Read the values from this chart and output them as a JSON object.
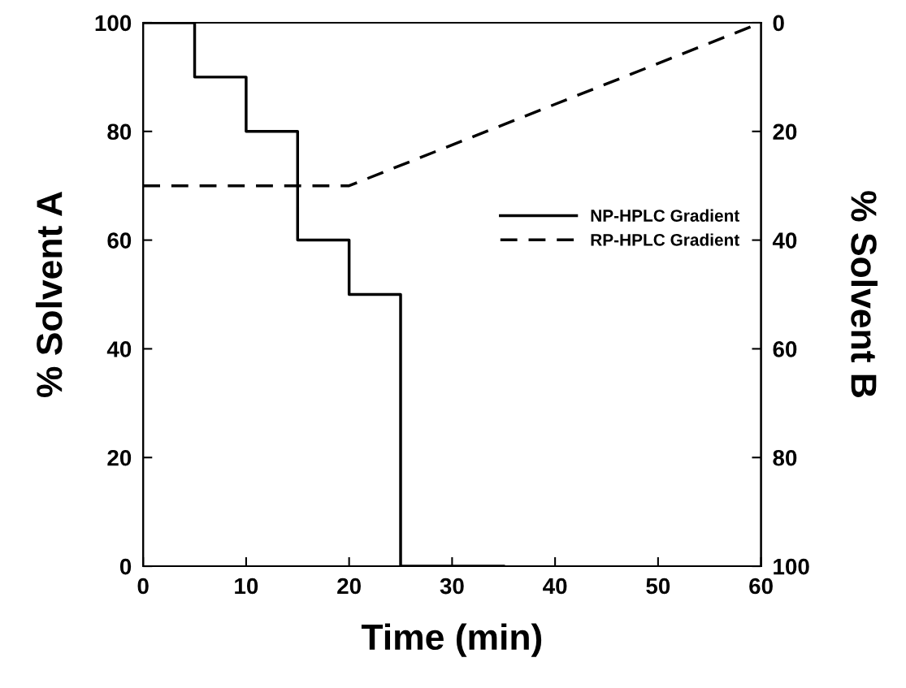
{
  "chart_data": {
    "type": "line",
    "xlabel": "Time (min)",
    "ylabel": "% Solvent A",
    "y2label": "% Solvent B",
    "series": [
      {
        "name": "NP-HPLC Gradient",
        "type": "step",
        "color": "#000000",
        "line_style": "solid",
        "x": [
          0,
          5,
          10,
          15,
          20,
          25,
          35
        ],
        "values": [
          100,
          90,
          80,
          60,
          50,
          0,
          0
        ]
      },
      {
        "name": "RP-HPLC Gradient",
        "color": "#000000",
        "line_style": "dashed",
        "axis": "y2",
        "x": [
          0,
          20,
          60
        ],
        "values": [
          30,
          30,
          0
        ]
      }
    ],
    "xlim": [
      0,
      60
    ],
    "xticks": [
      0,
      10,
      20,
      30,
      40,
      50,
      60
    ],
    "ylim": [
      0,
      100
    ],
    "yticks": [
      0,
      20,
      40,
      60,
      80,
      100
    ],
    "y2lim": [
      100,
      0
    ],
    "y2ticks": [
      0,
      20,
      40,
      60,
      80,
      100
    ],
    "legend": "right",
    "grid": false,
    "marker": "none"
  }
}
